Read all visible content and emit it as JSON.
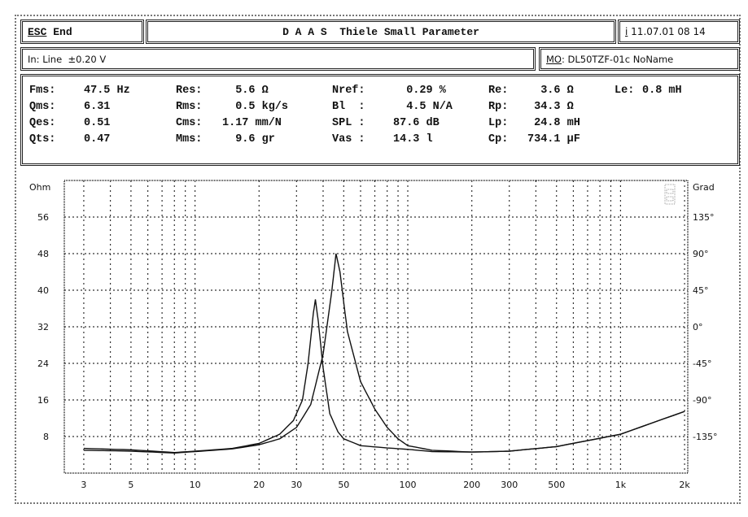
{
  "header": {
    "esc_key": "ESC",
    "esc_label": "End",
    "title": "D A A S  Thiele Small Parameter",
    "info_key": "i",
    "datetime": "11.07.01 08 14"
  },
  "input": {
    "label": "In: Line  ±0.20 V"
  },
  "model": {
    "key": "MO",
    "label": ": DL50TZF-01c NoName"
  },
  "params": [
    [
      {
        "l": "Fms:",
        "v": "47.5 Hz"
      },
      {
        "l": "Res:",
        "v": "  5.6 Ω"
      },
      {
        "l": "Nref:",
        "v": "  0.29 %"
      },
      {
        "l": "Re:",
        "v": "  3.6 Ω"
      },
      {
        "l": "Le:",
        "v": "0.8 mH"
      }
    ],
    [
      {
        "l": "Qms:",
        "v": "6.31"
      },
      {
        "l": "Rms:",
        "v": "  0.5 kg/s"
      },
      {
        "l": "Bl  :",
        "v": "  4.5 N/A"
      },
      {
        "l": "Rp:",
        "v": " 34.3 Ω"
      }
    ],
    [
      {
        "l": "Qes:",
        "v": "0.51"
      },
      {
        "l": "Cms:",
        "v": "1.17 mm/N"
      },
      {
        "l": "SPL :",
        "v": "87.6 dB"
      },
      {
        "l": "Lp:",
        "v": " 24.8 mH"
      }
    ],
    [
      {
        "l": "Qts:",
        "v": "0.47"
      },
      {
        "l": "Mms:",
        "v": "  9.6 gr"
      },
      {
        "l": "Vas :",
        "v": "14.3 l"
      },
      {
        "l": "Cp:",
        "v": "734.1 µF"
      }
    ]
  ],
  "chart_data": {
    "type": "line",
    "xscale": "log",
    "xlim": [
      2.43,
      2070
    ],
    "ylim": [
      0,
      64
    ],
    "y2lim": [
      -180,
      180
    ],
    "ylabel": "Ohm",
    "y2label": "Grad",
    "xticks": [
      {
        "v": 3,
        "t": "3"
      },
      {
        "v": 5,
        "t": "5"
      },
      {
        "v": 10,
        "t": "10"
      },
      {
        "v": 20,
        "t": "20"
      },
      {
        "v": 30,
        "t": "30"
      },
      {
        "v": 50,
        "t": "50"
      },
      {
        "v": 100,
        "t": "100"
      },
      {
        "v": 200,
        "t": "200"
      },
      {
        "v": 300,
        "t": "300"
      },
      {
        "v": 500,
        "t": "500"
      },
      {
        "v": 1000,
        "t": "1k"
      },
      {
        "v": 2000,
        "t": "2k"
      }
    ],
    "yticks": [
      {
        "v": 56,
        "t": "56"
      },
      {
        "v": 48,
        "t": "48"
      },
      {
        "v": 40,
        "t": "40"
      },
      {
        "v": 32,
        "t": "32"
      },
      {
        "v": 24,
        "t": "24"
      },
      {
        "v": 16,
        "t": "16"
      },
      {
        "v": 8,
        "t": "8"
      }
    ],
    "y2ticks": [
      {
        "v": 135,
        "t": "135°"
      },
      {
        "v": 90,
        "t": "90°"
      },
      {
        "v": 45,
        "t": "45°"
      },
      {
        "v": 0,
        "t": "0°"
      },
      {
        "v": -45,
        "t": "-45°"
      },
      {
        "v": -90,
        "t": "-90°"
      },
      {
        "v": -135,
        "t": "-135°"
      }
    ],
    "grid": true,
    "series": [
      {
        "points": [
          [
            3,
            5.0
          ],
          [
            5,
            4.8
          ],
          [
            8,
            4.4
          ],
          [
            10,
            4.7
          ],
          [
            15,
            5.3
          ],
          [
            20,
            6.2
          ],
          [
            25,
            7.5
          ],
          [
            30,
            10
          ],
          [
            35,
            15
          ],
          [
            40,
            26
          ],
          [
            44,
            40
          ],
          [
            46,
            48
          ],
          [
            48,
            44
          ],
          [
            52,
            31
          ],
          [
            60,
            20
          ],
          [
            70,
            14
          ],
          [
            80,
            10
          ],
          [
            90,
            7.5
          ],
          [
            100,
            6
          ],
          [
            130,
            5
          ],
          [
            200,
            4.6
          ],
          [
            300,
            4.8
          ],
          [
            500,
            5.8
          ],
          [
            1000,
            8.5
          ],
          [
            2000,
            13.5
          ]
        ]
      },
      {
        "points": [
          [
            3,
            5.4
          ],
          [
            5,
            5.1
          ],
          [
            8,
            4.5
          ],
          [
            10,
            4.8
          ],
          [
            15,
            5.4
          ],
          [
            20,
            6.5
          ],
          [
            25,
            8.5
          ],
          [
            29,
            11.5
          ],
          [
            32,
            16
          ],
          [
            34,
            24
          ],
          [
            36,
            35
          ],
          [
            36.8,
            38
          ],
          [
            38,
            33
          ],
          [
            40,
            23
          ],
          [
            43,
            13
          ],
          [
            47,
            9
          ],
          [
            50,
            7.5
          ],
          [
            60,
            6
          ],
          [
            80,
            5.5
          ],
          [
            100,
            5.2
          ],
          [
            130,
            4.7
          ],
          [
            200,
            4.6
          ],
          [
            300,
            4.8
          ],
          [
            500,
            5.8
          ],
          [
            1000,
            8.5
          ],
          [
            2000,
            13.5
          ]
        ]
      }
    ]
  }
}
